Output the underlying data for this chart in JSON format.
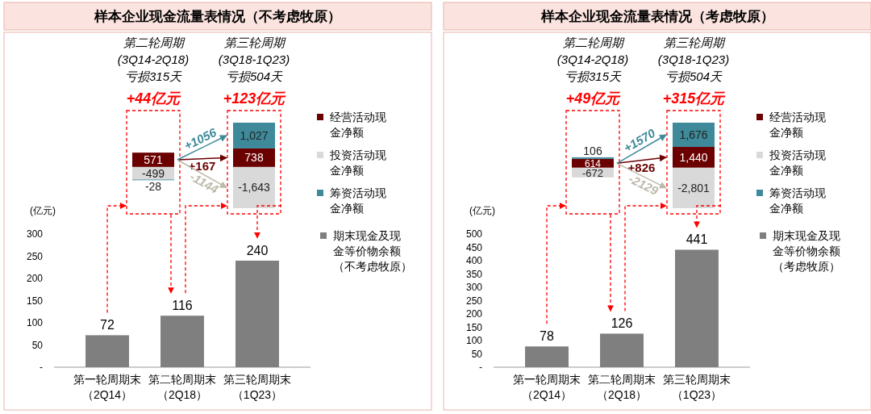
{
  "chart_data": [
    {
      "type": "bar",
      "stacked": true,
      "title": "样本企业现金流量表情况（不考虑牧原）",
      "categories": [
        null,
        null
      ],
      "legend": "right",
      "series": [
        {
          "name": "经营活动现金净额",
          "color": "#6b0000",
          "values": [
            571,
            738
          ],
          "value_labels": [
            "571",
            "738"
          ]
        },
        {
          "name": "投资活动现金净额",
          "color": "#d9d9d9",
          "values": [
            -499,
            -1643
          ],
          "value_labels": [
            "-499",
            "-1,643"
          ]
        },
        {
          "name": "筹资活动现金净额",
          "color": "#3e8a9a",
          "values": [
            -28,
            1027
          ],
          "value_labels": [
            "-28",
            "1,027"
          ]
        }
      ],
      "annotations": [
        "第二轮周期\n(3Q14-2Q18)\n亏损315天",
        "第三轮周期\n(3Q18-1Q23)\n亏损504天",
        "+44亿元",
        "+123亿元",
        "+167",
        "-1144",
        "+1056"
      ]
    },
    {
      "type": "bar",
      "categories": [
        "第一轮周期末（2Q14）",
        "第二轮周期末（2Q18）",
        "第三轮周期末（1Q23）"
      ],
      "ylabel": "(亿元)",
      "legend": "right",
      "data_labels": true,
      "series": [
        {
          "name": "期末现金及现金等价物余额（不考虑牧原）",
          "color": "#7f7f7f",
          "values": [
            72,
            116,
            240
          ]
        }
      ],
      "ylim": [
        0,
        300
      ],
      "yticks": [
        {
          "value": 0,
          "label": "-"
        },
        50,
        100,
        150,
        200,
        250,
        300
      ]
    },
    {
      "type": "bar",
      "stacked": true,
      "title": "样本企业现金流量表情况（考虑牧原）",
      "categories": [
        null,
        null
      ],
      "legend": "right",
      "series": [
        {
          "name": "经营活动现金净额",
          "color": "#6b0000",
          "values": [
            614,
            1440
          ],
          "value_labels": [
            "614",
            "1,440"
          ]
        },
        {
          "name": "投资活动现金净额",
          "color": "#d9d9d9",
          "values": [
            -672,
            -2801
          ],
          "value_labels": [
            "-672",
            "-2,801"
          ]
        },
        {
          "name": "筹资活动现金净额",
          "color": "#3e8a9a",
          "values": [
            106,
            1676
          ],
          "value_labels": [
            "106",
            "1,676"
          ]
        }
      ],
      "annotations": [
        "第二轮周期\n(3Q14-2Q18)\n亏损315天",
        "第三轮周期\n(3Q18-1Q23)\n亏损504天",
        "+49亿元",
        "+315亿元",
        "+826",
        "-2129",
        "+1570"
      ]
    },
    {
      "type": "bar",
      "categories": [
        "第一轮周期末（2Q14）",
        "第二轮周期末（2Q18）",
        "第三轮周期末（1Q23）"
      ],
      "ylabel": "(亿元)",
      "legend": "right",
      "data_labels": true,
      "series": [
        {
          "name": "期末现金及现金等价物余额（考虑牧原）",
          "color": "#7f7f7f",
          "values": [
            78,
            126,
            441
          ]
        }
      ],
      "ylim": [
        0,
        500
      ],
      "yticks": [
        {
          "value": 0,
          "label": "-"
        },
        50,
        100,
        150,
        200,
        250,
        300,
        350,
        400,
        450,
        500
      ]
    }
  ]
}
